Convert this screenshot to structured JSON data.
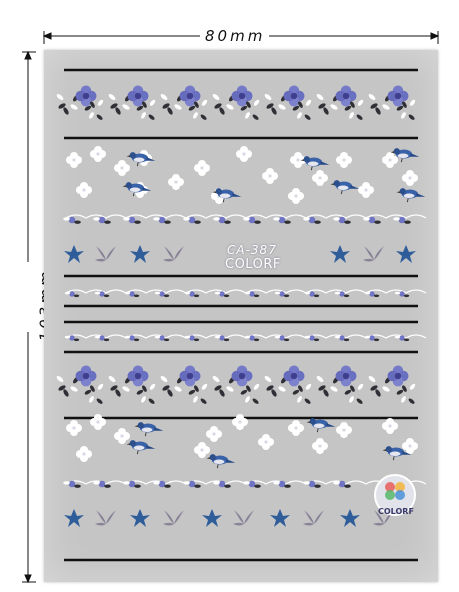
{
  "dimensions": {
    "width_label": "80mm",
    "height_label": "103mm"
  },
  "sheet": {
    "product_code": "CA-387",
    "brand": "COLORF",
    "badge_brand": "COLORF",
    "background_color": "#c5c5c5"
  },
  "colors": {
    "flower_blue": "#6f74c4",
    "flower_dark": "#3d3f8c",
    "bird_blue": "#3a62a8",
    "leaf_dark": "#2f2f35",
    "white": "#ffffff",
    "petal_grey": "#8a8398",
    "star_blue": "#2e5d9a"
  }
}
